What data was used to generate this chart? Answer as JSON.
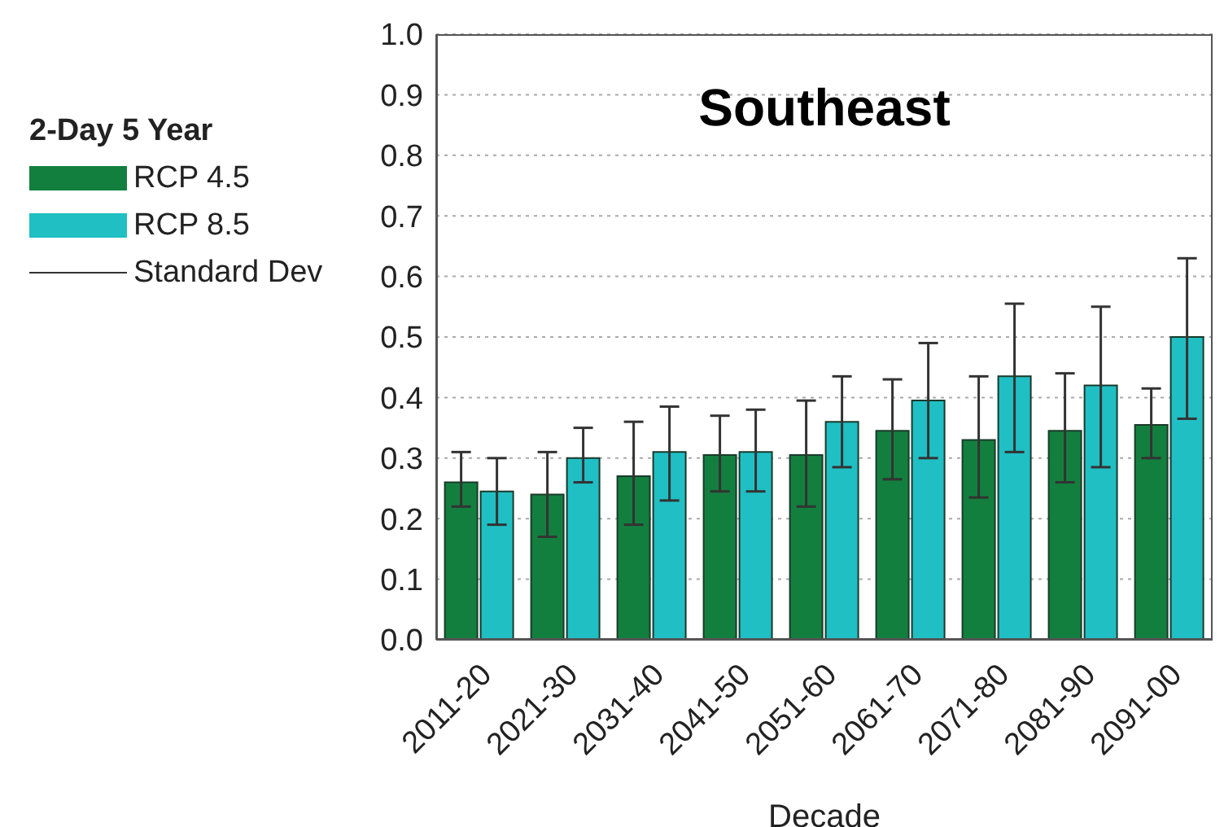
{
  "chart_data": {
    "type": "bar",
    "title": "Southeast",
    "xlabel": "Decade",
    "legend_title": "2-Day 5 Year",
    "legend": "left",
    "grid": "y",
    "categories": [
      "2011-20",
      "2021-30",
      "2031-40",
      "2041-50",
      "2051-60",
      "2061-70",
      "2071-80",
      "2081-90",
      "2091-00"
    ],
    "ylim": [
      0,
      1
    ],
    "yticks": [
      {
        "value": 0,
        "label": "0.0"
      },
      {
        "value": 0.1,
        "label": "0.1"
      },
      {
        "value": 0.2,
        "label": "0.2"
      },
      {
        "value": 0.3,
        "label": "0.3"
      },
      {
        "value": 0.4,
        "label": "0.4"
      },
      {
        "value": 0.5,
        "label": "0.5"
      },
      {
        "value": 0.6,
        "label": "0.6"
      },
      {
        "value": 0.7,
        "label": "0.7"
      },
      {
        "value": 0.8,
        "label": "0.8"
      },
      {
        "value": 0.9,
        "label": "0.9"
      },
      {
        "value": 1,
        "label": "1.0"
      }
    ],
    "series": [
      {
        "name": "RCP 4.5",
        "color": "#137f3f",
        "values": [
          0.26,
          0.24,
          0.27,
          0.305,
          0.305,
          0.345,
          0.33,
          0.345,
          0.355
        ],
        "errors": [
          [
            0.22,
            0.31
          ],
          [
            0.17,
            0.31
          ],
          [
            0.19,
            0.36
          ],
          [
            0.245,
            0.37
          ],
          [
            0.22,
            0.395
          ],
          [
            0.265,
            0.43
          ],
          [
            0.235,
            0.435
          ],
          [
            0.26,
            0.44
          ],
          [
            0.3,
            0.415
          ]
        ]
      },
      {
        "name": "RCP 8.5",
        "color": "#20bfc4",
        "values": [
          0.245,
          0.3,
          0.31,
          0.31,
          0.36,
          0.395,
          0.435,
          0.42,
          0.5
        ],
        "errors": [
          [
            0.19,
            0.3
          ],
          [
            0.26,
            0.35
          ],
          [
            0.23,
            0.385
          ],
          [
            0.245,
            0.38
          ],
          [
            0.285,
            0.435
          ],
          [
            0.3,
            0.49
          ],
          [
            0.31,
            0.555
          ],
          [
            0.285,
            0.55
          ],
          [
            0.365,
            0.63
          ]
        ]
      }
    ],
    "annotations": [
      "Standard Dev"
    ]
  }
}
